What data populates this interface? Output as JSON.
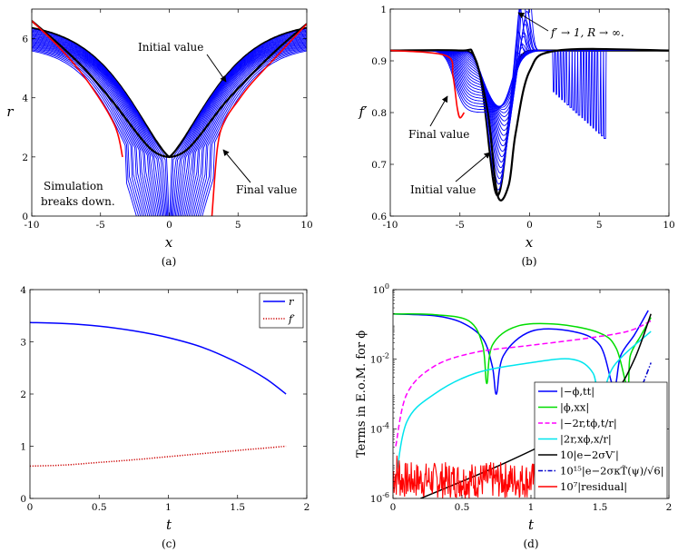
{
  "chart_data": [
    {
      "id": "a",
      "type": "line",
      "caption": "(a)",
      "xlabel": "x",
      "ylabel": "r",
      "xlim": [
        -10,
        10
      ],
      "ylim": [
        0,
        7
      ],
      "xticks": [
        -10,
        -5,
        0,
        5,
        10
      ],
      "xtick_labels": [
        "-10",
        "-5",
        "0",
        "5",
        "10"
      ],
      "yticks": [
        0,
        2,
        4,
        6
      ],
      "ytick_labels": [
        "0",
        "2",
        "4",
        "6"
      ],
      "series": [
        {
          "name": "Initial value (black)",
          "color": "#000000",
          "x": [
            -10,
            -8,
            -6,
            -4,
            -2,
            -1,
            0,
            1,
            2,
            4,
            6,
            8,
            10
          ],
          "y": [
            6.6,
            5.8,
            4.9,
            3.8,
            2.6,
            2.15,
            2.0,
            2.15,
            2.6,
            3.8,
            4.8,
            5.7,
            6.5
          ]
        },
        {
          "name": "Final value (red)",
          "color": "#ff0000",
          "x": [
            -10,
            -8,
            -6,
            -4,
            -3.4
          ],
          "y": [
            6.6,
            5.7,
            4.6,
            3.1,
            2.0
          ]
        },
        {
          "name": "Final value right (red)",
          "color": "#ff0000",
          "x": [
            3.1,
            3.5,
            4,
            5,
            6,
            8,
            10
          ],
          "y": [
            0,
            2.3,
            3.2,
            3.9,
            4.5,
            5.5,
            6.5
          ]
        }
      ],
      "annotations": [
        "Initial value",
        "Final value",
        "Simulation",
        "breaks down."
      ]
    },
    {
      "id": "b",
      "type": "line",
      "caption": "(b)",
      "xlabel": "x",
      "ylabel": "f′",
      "xlim": [
        -10,
        10
      ],
      "ylim": [
        0.6,
        1.0
      ],
      "xticks": [
        -10,
        -5,
        0,
        5,
        10
      ],
      "xtick_labels": [
        "-10",
        "-5",
        "0",
        "5",
        "10"
      ],
      "yticks": [
        0.6,
        0.7,
        0.8,
        0.9,
        1.0
      ],
      "ytick_labels": [
        "0.6",
        "0.7",
        "0.8",
        "0.9",
        "1"
      ],
      "series": [
        {
          "name": "Initial value (black)",
          "color": "#000000",
          "x": [
            -10,
            -5,
            -4,
            -3,
            -2.3,
            -1.5,
            -1,
            0,
            2,
            10
          ],
          "y": [
            0.92,
            0.92,
            0.91,
            0.8,
            0.64,
            0.66,
            0.76,
            0.88,
            0.92,
            0.92
          ]
        },
        {
          "name": "Final value (red)",
          "color": "#ff0000",
          "x": [
            -10,
            -6,
            -5.5,
            -5.2,
            -5.0,
            -4.7
          ],
          "y": [
            0.92,
            0.91,
            0.87,
            0.81,
            0.79,
            0.8
          ]
        }
      ],
      "annotations": [
        "f′ → 1, R → ∞.",
        "Final value",
        "Initial value"
      ]
    },
    {
      "id": "c",
      "type": "line",
      "caption": "(c)",
      "xlabel": "t",
      "ylabel": "",
      "xlim": [
        0,
        2
      ],
      "ylim": [
        0,
        4
      ],
      "xticks": [
        0,
        0.5,
        1,
        1.5,
        2
      ],
      "xtick_labels": [
        "0",
        "0.5",
        "1",
        "1.5",
        "2"
      ],
      "yticks": [
        0,
        1,
        2,
        3,
        4
      ],
      "ytick_labels": [
        "0",
        "1",
        "2",
        "3",
        "4"
      ],
      "legend_position": "top-right",
      "series": [
        {
          "name": "r",
          "color": "#0000ff",
          "style": "solid",
          "x": [
            0,
            0.25,
            0.5,
            0.75,
            1.0,
            1.25,
            1.5,
            1.7,
            1.85
          ],
          "y": [
            3.37,
            3.35,
            3.3,
            3.21,
            3.08,
            2.89,
            2.6,
            2.3,
            2.0
          ]
        },
        {
          "name": "f′",
          "color": "#cc0000",
          "style": "dotted",
          "x": [
            0,
            0.25,
            0.5,
            0.75,
            1.0,
            1.25,
            1.5,
            1.85
          ],
          "y": [
            0.62,
            0.64,
            0.69,
            0.74,
            0.8,
            0.86,
            0.92,
            1.0
          ]
        }
      ],
      "legend": [
        "r",
        "f′"
      ]
    },
    {
      "id": "d",
      "type": "line",
      "caption": "(d)",
      "xlabel": "t",
      "ylabel": "Terms in E.o.M. for ϕ",
      "yscale": "log",
      "xlim": [
        0,
        2
      ],
      "ylim_exp": [
        -6,
        0
      ],
      "xticks": [
        0,
        0.5,
        1,
        1.5,
        2
      ],
      "xtick_labels": [
        "0",
        "0.5",
        "1",
        "1.5",
        "2"
      ],
      "yticks_exp": [
        -6,
        -4,
        -2,
        0
      ],
      "ytick_bases": [
        "10",
        "10",
        "10",
        "10"
      ],
      "ytick_exps": [
        "-6",
        "-4",
        "-2",
        "0"
      ],
      "legend_position": "bottom-right",
      "series": [
        {
          "name": "|−ϕ,tt|",
          "color": "#0000ff",
          "style": "solid",
          "x": [
            0,
            0.3,
            0.5,
            0.65,
            0.72,
            0.75,
            0.8,
            1.0,
            1.3,
            1.5,
            1.6,
            1.65,
            1.75,
            1.85
          ],
          "logy": [
            -0.7,
            -0.75,
            -0.95,
            -1.4,
            -2.2,
            -3.0,
            -1.9,
            -1.2,
            -1.2,
            -1.6,
            -2.8,
            -1.9,
            -1.3,
            -0.6
          ]
        },
        {
          "name": "|ϕ,xx|",
          "color": "#00dd00",
          "style": "solid",
          "x": [
            0,
            0.3,
            0.55,
            0.65,
            0.68,
            0.72,
            0.9,
            1.2,
            1.5,
            1.62,
            1.7,
            1.72,
            1.8,
            1.87
          ],
          "logy": [
            -0.7,
            -0.72,
            -0.9,
            -1.6,
            -2.7,
            -1.6,
            -1.05,
            -1.0,
            -1.25,
            -1.7,
            -2.8,
            -1.9,
            -1.3,
            -0.8
          ]
        },
        {
          "name": "|−2r,tϕ,t/r|",
          "color": "#ff00ff",
          "style": "dashed",
          "x": [
            0.02,
            0.1,
            0.3,
            0.6,
            1.0,
            1.4,
            1.7,
            1.87
          ],
          "logy": [
            -4.5,
            -3.0,
            -2.2,
            -1.8,
            -1.6,
            -1.4,
            -1.2,
            -0.9
          ]
        },
        {
          "name": "|2r,xϕ,x/r|",
          "color": "#00e5ee",
          "style": "solid",
          "x": [
            0.02,
            0.1,
            0.3,
            0.6,
            1.0,
            1.3,
            1.45,
            1.5,
            1.6,
            1.87
          ],
          "logy": [
            -5.5,
            -3.8,
            -3.0,
            -2.4,
            -2.1,
            -2.0,
            -2.4,
            -3.3,
            -2.2,
            -1.2
          ]
        },
        {
          "name": "10|e−2σV′|",
          "color": "#000000",
          "style": "solid",
          "x": [
            0.2,
            0.8,
            1.3,
            1.6,
            1.75,
            1.87
          ],
          "logy": [
            -6.0,
            -5.0,
            -4.0,
            -3.0,
            -2.0,
            -0.7
          ]
        },
        {
          "name": "10¹⁵|e−2σκT̃(ψ)/√6|",
          "color": "#0000cc",
          "style": "dashdot",
          "x": [
            1.62,
            1.7,
            1.78,
            1.87
          ],
          "logy": [
            -4.0,
            -3.6,
            -3.0,
            -2.1
          ]
        },
        {
          "name": "10⁷|residual|",
          "color": "#ff0000",
          "style": "solid",
          "noise": true,
          "x": [
            0,
            1.05
          ],
          "logy_band": [
            -6.0,
            -4.6
          ]
        }
      ],
      "legend": [
        "|−ϕ,tt|",
        "|ϕ,xx|",
        "|−2r,tϕ,t/r|",
        "|2r,xϕ,x/r|",
        "10|e−2σV′|",
        "10¹⁵|e−2σκT̃(ψ)/√6|",
        "10⁷|residual|"
      ]
    }
  ]
}
